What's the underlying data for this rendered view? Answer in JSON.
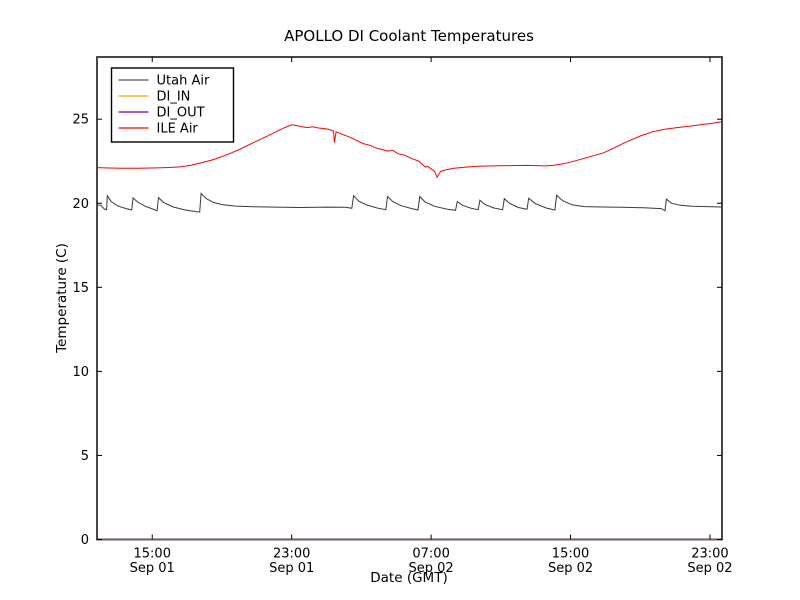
{
  "chart_data": {
    "type": "line",
    "title": "APOLLO DI Coolant Temperatures",
    "xlabel": "Date (GMT)",
    "ylabel": "Temperature (C)",
    "xlim": [
      11.83,
      47.69
    ],
    "ylim": [
      0,
      28.7
    ],
    "grid": false,
    "legend_position": "upper-left",
    "yticks": [
      0,
      5,
      10,
      15,
      20,
      25
    ],
    "xticks": [
      {
        "value": 15,
        "time": "15:00",
        "date": "Sep 01"
      },
      {
        "value": 23,
        "time": "23:00",
        "date": "Sep 01"
      },
      {
        "value": 31,
        "time": "07:00",
        "date": "Sep 02"
      },
      {
        "value": 39,
        "time": "15:00",
        "date": "Sep 02"
      },
      {
        "value": 47,
        "time": "23:00",
        "date": "Sep 02"
      }
    ],
    "series": [
      {
        "name": "Utah Air",
        "color": "#555555",
        "plot_color": "#3a3a3a",
        "points": [
          [
            11.83,
            19.9
          ],
          [
            12.05,
            19.88
          ],
          [
            12.25,
            19.66
          ],
          [
            12.38,
            19.62
          ],
          [
            12.42,
            20.45
          ],
          [
            12.65,
            20.1
          ],
          [
            13.0,
            19.85
          ],
          [
            13.5,
            19.68
          ],
          [
            13.82,
            19.6
          ],
          [
            13.9,
            20.32
          ],
          [
            14.15,
            20.08
          ],
          [
            14.6,
            19.82
          ],
          [
            15.1,
            19.63
          ],
          [
            15.28,
            19.56
          ],
          [
            15.36,
            20.33
          ],
          [
            15.65,
            20.05
          ],
          [
            16.2,
            19.78
          ],
          [
            16.9,
            19.6
          ],
          [
            17.55,
            19.5
          ],
          [
            17.72,
            19.48
          ],
          [
            17.8,
            20.58
          ],
          [
            18.1,
            20.28
          ],
          [
            18.5,
            20.05
          ],
          [
            19.0,
            19.92
          ],
          [
            19.8,
            19.83
          ],
          [
            20.8,
            19.79
          ],
          [
            22.0,
            19.77
          ],
          [
            23.5,
            19.75
          ],
          [
            25.0,
            19.77
          ],
          [
            26.1,
            19.76
          ],
          [
            26.45,
            19.7
          ],
          [
            26.55,
            20.45
          ],
          [
            26.85,
            20.12
          ],
          [
            27.3,
            19.9
          ],
          [
            27.9,
            19.72
          ],
          [
            28.4,
            19.62
          ],
          [
            28.5,
            20.4
          ],
          [
            28.8,
            20.1
          ],
          [
            29.3,
            19.85
          ],
          [
            29.9,
            19.68
          ],
          [
            30.25,
            19.6
          ],
          [
            30.35,
            20.4
          ],
          [
            30.65,
            20.08
          ],
          [
            31.2,
            19.82
          ],
          [
            31.9,
            19.65
          ],
          [
            32.4,
            19.58
          ],
          [
            32.5,
            20.1
          ],
          [
            32.8,
            19.88
          ],
          [
            33.3,
            19.7
          ],
          [
            33.7,
            19.62
          ],
          [
            33.8,
            20.18
          ],
          [
            34.1,
            19.92
          ],
          [
            34.6,
            19.72
          ],
          [
            35.1,
            19.62
          ],
          [
            35.2,
            20.28
          ],
          [
            35.5,
            20.0
          ],
          [
            36.0,
            19.75
          ],
          [
            36.5,
            19.64
          ],
          [
            36.6,
            20.3
          ],
          [
            36.95,
            20.0
          ],
          [
            37.6,
            19.72
          ],
          [
            38.1,
            19.6
          ],
          [
            38.2,
            20.48
          ],
          [
            38.55,
            20.15
          ],
          [
            39.1,
            19.9
          ],
          [
            39.8,
            19.8
          ],
          [
            40.8,
            19.78
          ],
          [
            42.0,
            19.76
          ],
          [
            43.2,
            19.73
          ],
          [
            44.2,
            19.68
          ],
          [
            44.42,
            19.56
          ],
          [
            44.5,
            20.25
          ],
          [
            44.8,
            20.0
          ],
          [
            45.3,
            19.88
          ],
          [
            46.0,
            19.82
          ],
          [
            46.8,
            19.8
          ],
          [
            47.69,
            19.78
          ]
        ]
      },
      {
        "name": "DI_IN",
        "color": "#ffa500",
        "plot_color": "#ffa500",
        "points": [
          [
            11.83,
            0
          ],
          [
            47.69,
            0
          ]
        ]
      },
      {
        "name": "DI_OUT",
        "color": "#800080",
        "plot_color": "#800080",
        "points": [
          [
            11.83,
            0.02
          ],
          [
            47.69,
            0.02
          ]
        ]
      },
      {
        "name": "ILE Air",
        "color": "#ff0000",
        "plot_color": "#ff0000",
        "points": [
          [
            11.83,
            22.12
          ],
          [
            12.5,
            22.1
          ],
          [
            13.3,
            22.08
          ],
          [
            14.2,
            22.08
          ],
          [
            15.0,
            22.1
          ],
          [
            15.8,
            22.12
          ],
          [
            16.6,
            22.16
          ],
          [
            17.2,
            22.25
          ],
          [
            17.8,
            22.4
          ],
          [
            18.5,
            22.6
          ],
          [
            19.2,
            22.85
          ],
          [
            20.0,
            23.2
          ],
          [
            20.8,
            23.6
          ],
          [
            21.5,
            23.95
          ],
          [
            22.1,
            24.25
          ],
          [
            22.6,
            24.5
          ],
          [
            23.0,
            24.67
          ],
          [
            23.3,
            24.62
          ],
          [
            23.6,
            24.55
          ],
          [
            23.9,
            24.5
          ],
          [
            24.2,
            24.55
          ],
          [
            24.5,
            24.48
          ],
          [
            24.8,
            24.45
          ],
          [
            25.1,
            24.4
          ],
          [
            25.4,
            24.3
          ],
          [
            25.45,
            23.6
          ],
          [
            25.55,
            24.25
          ],
          [
            25.9,
            24.1
          ],
          [
            26.3,
            23.95
          ],
          [
            26.7,
            23.75
          ],
          [
            27.1,
            23.55
          ],
          [
            27.5,
            23.45
          ],
          [
            27.8,
            23.3
          ],
          [
            28.2,
            23.2
          ],
          [
            28.5,
            23.1
          ],
          [
            28.8,
            23.15
          ],
          [
            29.1,
            22.95
          ],
          [
            29.5,
            22.85
          ],
          [
            29.9,
            22.65
          ],
          [
            30.3,
            22.5
          ],
          [
            30.66,
            22.15
          ],
          [
            30.8,
            22.2
          ],
          [
            31.0,
            22.05
          ],
          [
            31.2,
            21.9
          ],
          [
            31.35,
            21.55
          ],
          [
            31.55,
            21.9
          ],
          [
            31.9,
            22.0
          ],
          [
            32.3,
            22.08
          ],
          [
            33.0,
            22.15
          ],
          [
            33.7,
            22.2
          ],
          [
            34.5,
            22.22
          ],
          [
            35.5,
            22.24
          ],
          [
            36.5,
            22.25
          ],
          [
            37.5,
            22.22
          ],
          [
            38.0,
            22.25
          ],
          [
            38.6,
            22.35
          ],
          [
            39.2,
            22.5
          ],
          [
            39.8,
            22.68
          ],
          [
            40.4,
            22.85
          ],
          [
            40.9,
            23.0
          ],
          [
            41.5,
            23.3
          ],
          [
            42.2,
            23.65
          ],
          [
            43.0,
            24.0
          ],
          [
            43.7,
            24.25
          ],
          [
            44.4,
            24.4
          ],
          [
            45.1,
            24.5
          ],
          [
            45.8,
            24.58
          ],
          [
            46.5,
            24.68
          ],
          [
            47.1,
            24.75
          ],
          [
            47.69,
            24.85
          ]
        ]
      }
    ],
    "axis_color": "#333333",
    "background": "#ffffff"
  }
}
